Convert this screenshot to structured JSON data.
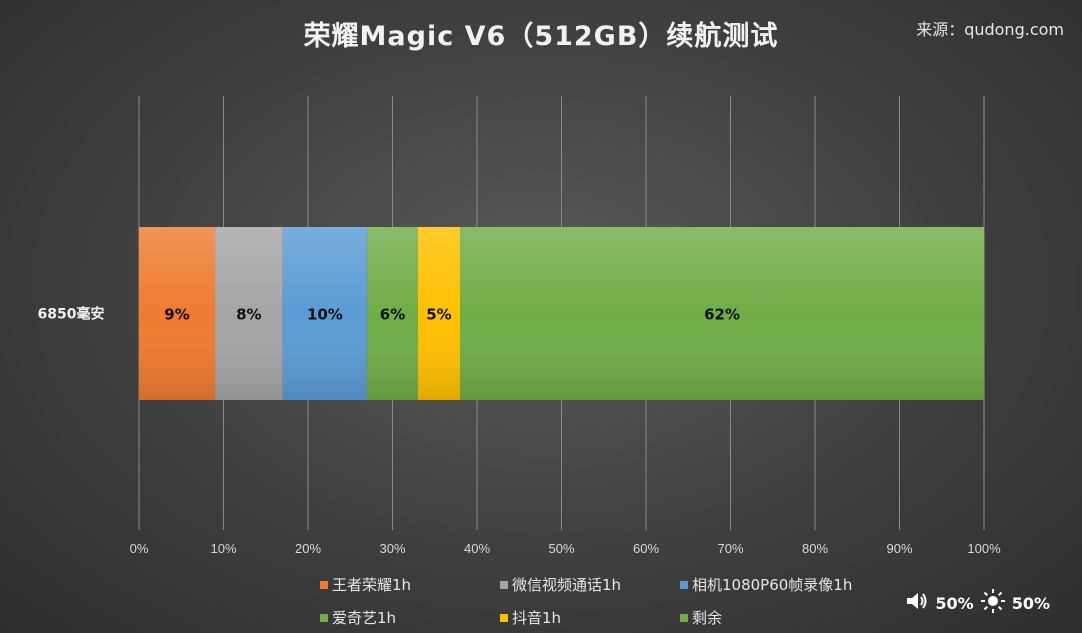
{
  "title": "荣耀Magic V6（512GB）续航测试",
  "source": "来源：qudong.com",
  "chart_data": {
    "type": "bar",
    "orientation": "horizontal-stacked-100",
    "categories": [
      "6850毫安"
    ],
    "series": [
      {
        "name": "王者荣耀1h",
        "values": [
          9
        ],
        "label": "9%",
        "color": "#ef7b31"
      },
      {
        "name": "微信视频通话1h",
        "values": [
          8
        ],
        "label": "8%",
        "color": "#a5a5a5"
      },
      {
        "name": "相机1080P60帧录像1h",
        "values": [
          10
        ],
        "label": "10%",
        "color": "#5b9bd5"
      },
      {
        "name": "爱奇艺1h",
        "values": [
          6
        ],
        "label": "6%",
        "color": "#70ad47"
      },
      {
        "name": "抖音1h",
        "values": [
          5
        ],
        "label": "5%",
        "color": "#ffc000"
      },
      {
        "name": "剩余",
        "values": [
          62
        ],
        "label": "62%",
        "color": "#70ad47"
      }
    ],
    "xlim": [
      0,
      100
    ],
    "xticks": [
      0,
      10,
      20,
      30,
      40,
      50,
      60,
      70,
      80,
      90,
      100
    ],
    "xtick_labels": [
      "0%",
      "10%",
      "20%",
      "30%",
      "40%",
      "50%",
      "60%",
      "70%",
      "80%",
      "90%",
      "100%"
    ],
    "grid": "vertical",
    "legend_position": "bottom"
  },
  "status": {
    "volume_icon": "speaker-icon",
    "volume": "50%",
    "brightness_icon": "sun-icon",
    "brightness": "50%"
  }
}
